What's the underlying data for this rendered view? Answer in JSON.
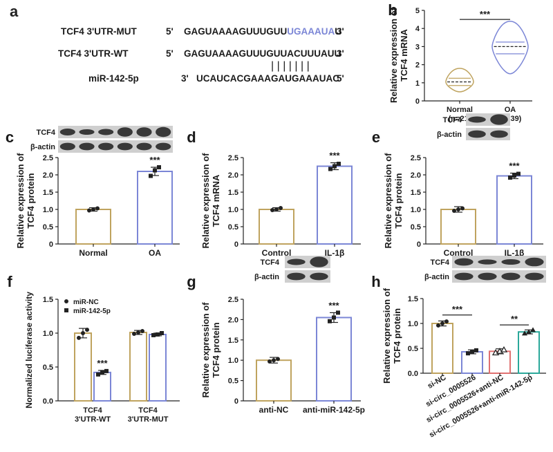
{
  "colors": {
    "gold": "#bfa35e",
    "blue": "#7b86d6",
    "red": "#e07070",
    "teal": "#2aa89a",
    "text": "#1a1a1a"
  },
  "panel_a": {
    "label": "a",
    "rows": [
      {
        "name": "TCF4 3'UTR-MUT",
        "p5": "5'",
        "seq_pre": "GAGUAAAAGUUUGUU",
        "seq_hl": "UGAAAUA",
        "seq_post": "U",
        "p3": "3'"
      },
      {
        "name": "TCF4 3'UTR-WT",
        "p5": "5'",
        "seq_pre": "GAGUAAAAGUUUGUUACUUUAUU",
        "seq_hl": "",
        "seq_post": "",
        "p3": "3'"
      },
      {
        "name": "miR-142-5p",
        "p5": "3'",
        "seq_pre": "UCAUCACGAAAGAUGAAAUAC",
        "seq_hl": "",
        "seq_post": "",
        "p3": "5'"
      }
    ],
    "pairing_marks": "| | | | | | |"
  },
  "chart_data": [
    {
      "panel": "b",
      "type": "violin",
      "ylabel": "Relative expression of TCF4 mRNA",
      "ylim": [
        0,
        5
      ],
      "yticks": [
        0,
        1,
        2,
        3,
        4,
        5
      ],
      "categories": [
        "Normal\n(n=21)",
        "OA\n(n=39)"
      ],
      "violins": [
        {
          "median": 1.05,
          "q1": 0.85,
          "q3": 1.25,
          "min": 0.5,
          "max": 1.8
        },
        {
          "median": 3.0,
          "q1": 2.6,
          "q3": 3.25,
          "min": 1.5,
          "max": 4.4
        }
      ],
      "significance": [
        {
          "from": 0,
          "to": 1,
          "y": 4.5,
          "text": "***"
        }
      ]
    },
    {
      "panel": "c",
      "type": "bar",
      "ylabel": "Relative expression of TCF4 protein",
      "ylim": [
        0,
        2.5
      ],
      "yticks": [
        0,
        0.5,
        1.0,
        1.5,
        2.0,
        2.5
      ],
      "categories": [
        "Normal",
        "OA"
      ],
      "values": [
        1.0,
        2.1
      ],
      "errors": [
        0.05,
        0.12
      ],
      "points": [
        [
          0.97,
          1.0,
          1.03
        ],
        [
          1.97,
          2.13,
          2.22
        ]
      ],
      "significance": [
        {
          "bar": 1,
          "text": "***"
        }
      ],
      "blot": [
        "TCF4",
        "β-actin"
      ]
    },
    {
      "panel": "d",
      "type": "bar",
      "ylabel": "Relative expression of TCF4 mRNA",
      "ylim": [
        0,
        2.5
      ],
      "yticks": [
        0,
        0.5,
        1.0,
        1.5,
        2.0,
        2.5
      ],
      "categories": [
        "Control",
        "IL-1β"
      ],
      "values": [
        1.0,
        2.25
      ],
      "errors": [
        0.05,
        0.1
      ],
      "points": [
        [
          0.98,
          1.0,
          1.04
        ],
        [
          2.17,
          2.25,
          2.32
        ]
      ],
      "significance": [
        {
          "bar": 1,
          "text": "***"
        }
      ]
    },
    {
      "panel": "e",
      "type": "bar",
      "ylabel": "Relative expression of TCF4 protein",
      "ylim": [
        0,
        2.5
      ],
      "yticks": [
        0,
        0.5,
        1.0,
        1.5,
        2.0,
        2.5
      ],
      "categories": [
        "Control",
        "IL-1β"
      ],
      "values": [
        1.0,
        1.97
      ],
      "errors": [
        0.08,
        0.08
      ],
      "points": [
        [
          0.96,
          1.0,
          1.03
        ],
        [
          1.92,
          1.98,
          2.03
        ]
      ],
      "significance": [
        {
          "bar": 1,
          "text": "***"
        }
      ],
      "blot": [
        "TCF4",
        "β-actin"
      ]
    },
    {
      "panel": "f",
      "type": "grouped_bar",
      "ylabel": "Normalized luciferase activity",
      "ylim": [
        0,
        1.5
      ],
      "yticks": [
        0.0,
        0.5,
        1.0,
        1.5
      ],
      "categories": [
        "TCF4\n3'UTR-WT",
        "TCF4\n3'UTR-MUT"
      ],
      "series": [
        {
          "name": "miR-NC",
          "values": [
            1.0,
            1.01
          ],
          "errors": [
            0.07,
            0.03
          ],
          "points": [
            [
              0.93,
              1.0,
              1.05
            ],
            [
              0.99,
              1.01,
              1.03
            ]
          ]
        },
        {
          "name": "miR-142-5p",
          "values": [
            0.42,
            0.98
          ],
          "errors": [
            0.03,
            0.02
          ],
          "points": [
            [
              0.39,
              0.42,
              0.44
            ],
            [
              0.97,
              0.98,
              1.0
            ]
          ]
        }
      ],
      "significance": [
        {
          "bar": [
            0,
            1
          ],
          "text": "***"
        }
      ]
    },
    {
      "panel": "g",
      "type": "bar",
      "ylabel": "Relative expression of TCF4 protein",
      "ylim": [
        0,
        2.5
      ],
      "yticks": [
        0,
        0.5,
        1.0,
        1.5,
        2.0,
        2.5
      ],
      "categories": [
        "anti-NC",
        "anti-miR-142-5p"
      ],
      "values": [
        1.0,
        2.05
      ],
      "errors": [
        0.07,
        0.12
      ],
      "points": [
        [
          0.97,
          1.0,
          1.03
        ],
        [
          1.96,
          2.05,
          2.17
        ]
      ],
      "significance": [
        {
          "bar": 1,
          "text": "***"
        }
      ],
      "blot": [
        "TCF4",
        "β-actin"
      ]
    },
    {
      "panel": "h",
      "type": "bar",
      "ylabel": "Relative expression of TCF4 protein",
      "ylim": [
        0,
        1.5
      ],
      "yticks": [
        0.0,
        0.5,
        1.0,
        1.5
      ],
      "categories": [
        "si-NC",
        "si-circ_0005526",
        "si-circ_0005526+anti-NC",
        "si-circ_0005526+anti-miR-142-5p"
      ],
      "values": [
        1.0,
        0.43,
        0.44,
        0.83
      ],
      "errors": [
        0.05,
        0.04,
        0.05,
        0.04
      ],
      "points": [
        [
          0.96,
          1.0,
          1.04
        ],
        [
          0.4,
          0.43,
          0.46
        ],
        [
          0.41,
          0.44,
          0.47
        ],
        [
          0.8,
          0.83,
          0.87
        ]
      ],
      "significance": [
        {
          "from": 0,
          "to": 1,
          "y": 1.17,
          "text": "***"
        },
        {
          "from": 2,
          "to": 3,
          "y": 0.97,
          "text": "**"
        }
      ],
      "blot": [
        "TCF4",
        "β-actin"
      ]
    }
  ]
}
